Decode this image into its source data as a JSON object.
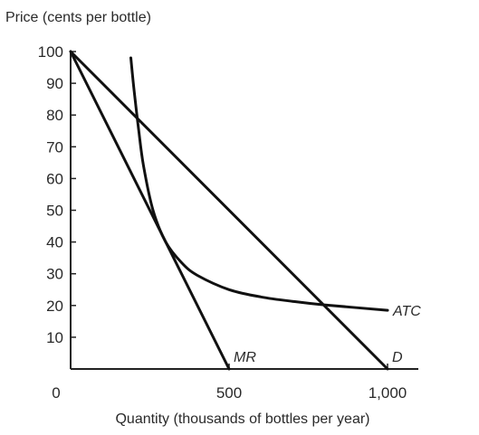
{
  "chart_data": {
    "type": "line",
    "ylabel": "Price (cents per bottle)",
    "xlabel": "Quantity (thousands of bottles per year)",
    "xlim": [
      0,
      1000
    ],
    "ylim": [
      0,
      100
    ],
    "x_ticks": [
      0,
      500,
      1000
    ],
    "x_tick_labels": [
      "0",
      "500",
      "1,000"
    ],
    "y_ticks": [
      10,
      20,
      30,
      40,
      50,
      60,
      70,
      80,
      90,
      100
    ],
    "y_tick_labels": [
      "10",
      "20",
      "30",
      "40",
      "50",
      "60",
      "70",
      "80",
      "90",
      "100"
    ],
    "grid": false,
    "series": [
      {
        "name": "D",
        "x": [
          0,
          1000
        ],
        "y": [
          100,
          0
        ]
      },
      {
        "name": "MR",
        "x": [
          0,
          500
        ],
        "y": [
          100,
          0
        ]
      },
      {
        "name": "ATC",
        "x": [
          190,
          200,
          215,
          230,
          260,
          300,
          350,
          400,
          500,
          600,
          700,
          800,
          1000
        ],
        "y": [
          98,
          88,
          75,
          64,
          50,
          40,
          33.5,
          29.5,
          25,
          22.7,
          21.3,
          20.2,
          18.5
        ]
      }
    ]
  }
}
